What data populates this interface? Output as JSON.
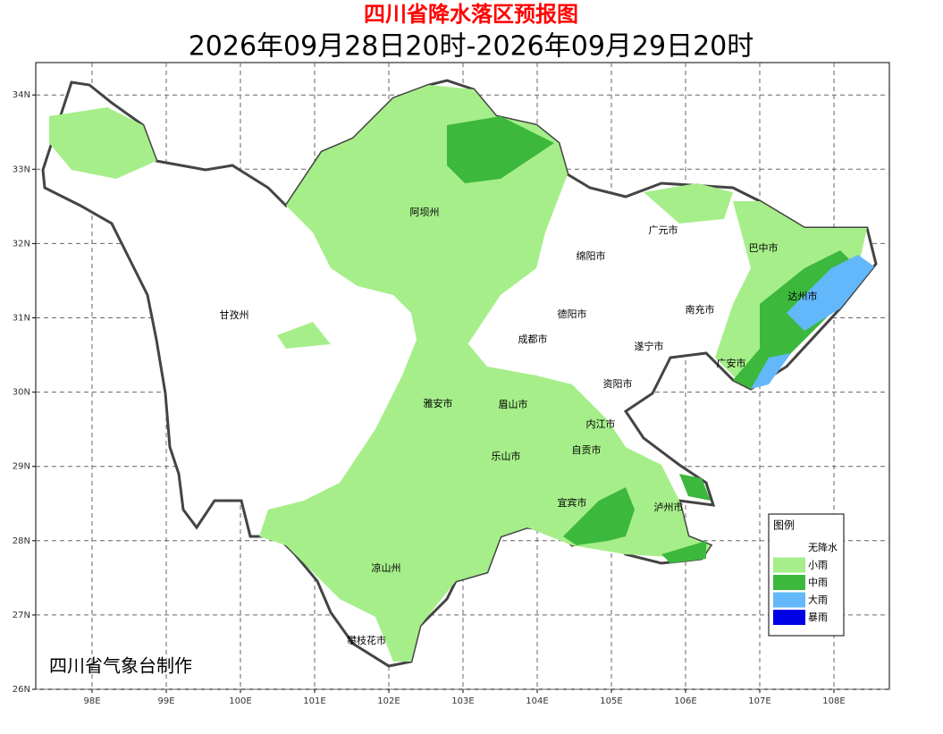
{
  "header": {
    "title": "四川省降水落区预报图",
    "subtitle": "2026年09月28日20时-2026年09月29日20时"
  },
  "axes": {
    "lat_ticks": [
      {
        "value": 34,
        "label": "34N"
      },
      {
        "value": 33,
        "label": "33N"
      },
      {
        "value": 32,
        "label": "32N"
      },
      {
        "value": 31,
        "label": "31N"
      },
      {
        "value": 30,
        "label": "30N"
      },
      {
        "value": 29,
        "label": "29N"
      },
      {
        "value": 28,
        "label": "28N"
      },
      {
        "value": 27,
        "label": "27N"
      },
      {
        "value": 26,
        "label": "26N"
      }
    ],
    "lon_ticks": [
      {
        "value": 98,
        "label": "98E"
      },
      {
        "value": 99,
        "label": "99E"
      },
      {
        "value": 100,
        "label": "100E"
      },
      {
        "value": 101,
        "label": "101E"
      },
      {
        "value": 102,
        "label": "102E"
      },
      {
        "value": 103,
        "label": "103E"
      },
      {
        "value": 104,
        "label": "104E"
      },
      {
        "value": 105,
        "label": "105E"
      },
      {
        "value": 106,
        "label": "106E"
      },
      {
        "value": 107,
        "label": "107E"
      },
      {
        "value": 108,
        "label": "108E"
      }
    ]
  },
  "cities": [
    "阿坝州",
    "甘孜州",
    "广元市",
    "巴中市",
    "绵阳市",
    "德阳市",
    "南充市",
    "达州市",
    "成都市",
    "遂宁市",
    "广安市",
    "资阳市",
    "雅安市",
    "眉山市",
    "内江市",
    "乐山市",
    "自贡市",
    "宜宾市",
    "泸州市",
    "凉山州",
    "攀枝花市"
  ],
  "legend": {
    "title": "图例",
    "items": [
      {
        "label": "无降水",
        "color": "#ffffff"
      },
      {
        "label": "小雨",
        "color": "#a6ee8a"
      },
      {
        "label": "中雨",
        "color": "#3cb83c"
      },
      {
        "label": "大雨",
        "color": "#62b8fa"
      },
      {
        "label": "暴雨",
        "color": "#0000e6"
      }
    ]
  },
  "credit": "四川省气象台制作"
}
